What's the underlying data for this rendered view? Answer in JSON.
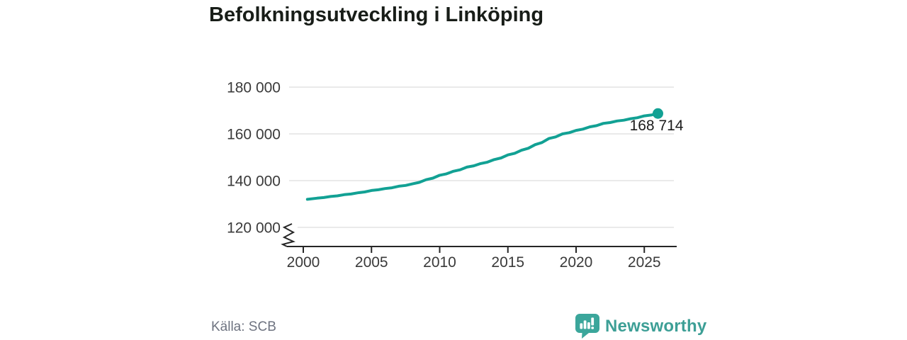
{
  "title": "Befolkningsutveckling i Linköping",
  "source": {
    "text": "Källa: SCB"
  },
  "branding": {
    "logo_text": "Newsworthy",
    "logo_icon": "bar-chart-speech-bubble-icon",
    "brand_color": "#3BA69B"
  },
  "chart_data": {
    "type": "line",
    "title": "Befolkningsutveckling i Linköping",
    "series_name": "Befolkning i Linköping",
    "line_color": "#12A194",
    "grid": true,
    "legend": false,
    "xlabel": "",
    "ylabel": "",
    "x_axis": {
      "ticks": [
        2000,
        2005,
        2010,
        2015,
        2020,
        2025
      ],
      "tick_labels": [
        "2000",
        "2005",
        "2010",
        "2015",
        "2020",
        "2025"
      ],
      "range": [
        1999.5,
        2027.4
      ]
    },
    "y_axis": {
      "ticks": [
        120000,
        140000,
        160000,
        180000
      ],
      "tick_labels": [
        "120 000",
        "140 000",
        "160 000",
        "180 000"
      ],
      "range": [
        118000,
        183000
      ],
      "broken_axis": true
    },
    "end_point": {
      "x": 2026.0,
      "value": 168714,
      "label": "168 714"
    },
    "points": [
      [
        2000.3,
        132000
      ],
      [
        2001,
        132500
      ],
      [
        2001.5,
        132745
      ],
      [
        2002,
        133200
      ],
      [
        2002.5,
        133480
      ],
      [
        2003,
        134000
      ],
      [
        2003.5,
        134280
      ],
      [
        2004,
        134800
      ],
      [
        2004.5,
        135150
      ],
      [
        2005,
        135800
      ],
      [
        2005.5,
        136080
      ],
      [
        2006,
        136600
      ],
      [
        2006.5,
        136950
      ],
      [
        2007,
        137600
      ],
      [
        2007.5,
        137950
      ],
      [
        2008,
        138600
      ],
      [
        2008.5,
        139230
      ],
      [
        2009,
        140400
      ],
      [
        2009.5,
        141065
      ],
      [
        2010,
        142300
      ],
      [
        2010.5,
        142895
      ],
      [
        2011,
        144000
      ],
      [
        2011.5,
        144630
      ],
      [
        2012,
        145800
      ],
      [
        2012.5,
        146325
      ],
      [
        2013,
        147300
      ],
      [
        2013.5,
        147895
      ],
      [
        2014,
        149000
      ],
      [
        2014.5,
        149700
      ],
      [
        2015,
        151000
      ],
      [
        2015.5,
        151700
      ],
      [
        2016,
        153000
      ],
      [
        2016.5,
        153840
      ],
      [
        2017,
        155400
      ],
      [
        2017.5,
        156310
      ],
      [
        2018,
        158000
      ],
      [
        2018.5,
        158700
      ],
      [
        2019,
        160000
      ],
      [
        2019.5,
        160525
      ],
      [
        2020,
        161500
      ],
      [
        2020.5,
        162025
      ],
      [
        2021,
        163000
      ],
      [
        2021.5,
        163525
      ],
      [
        2022,
        164500
      ],
      [
        2022.5,
        164850
      ],
      [
        2023,
        165500
      ],
      [
        2023.5,
        165850
      ],
      [
        2024,
        166500
      ],
      [
        2024.5,
        166920
      ],
      [
        2025,
        167700
      ],
      [
        2025.5,
        168055
      ],
      [
        2026,
        168714
      ]
    ]
  }
}
